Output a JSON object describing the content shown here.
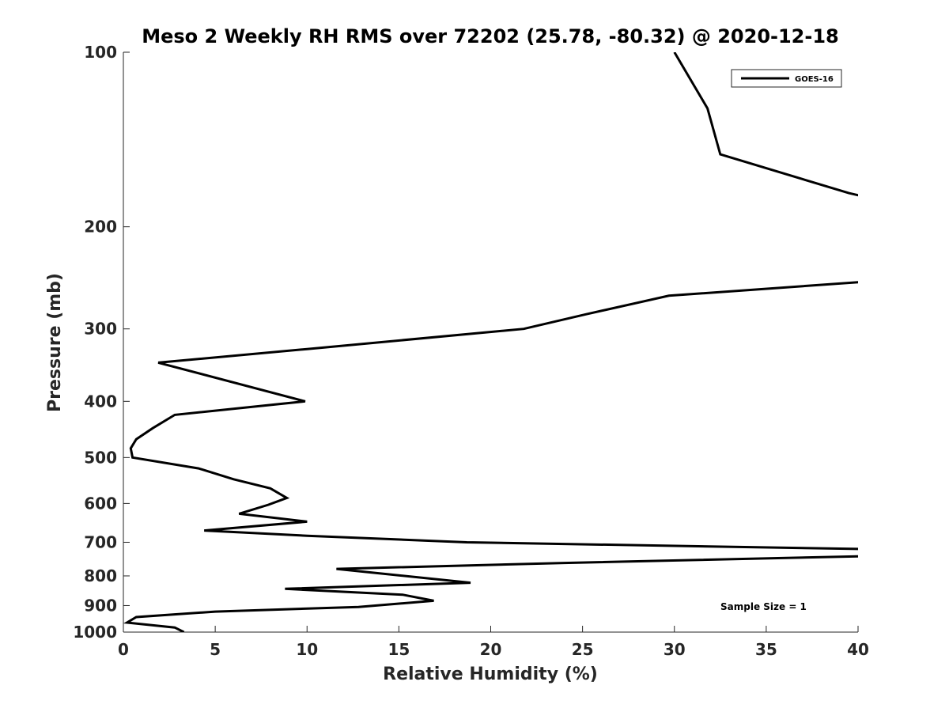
{
  "chart_data": {
    "type": "line",
    "title": "Meso 2 Weekly RH RMS over 72202 (25.78, -80.32) @ 2020-12-18",
    "xlabel": "Relative Humidity (%)",
    "ylabel": "Pressure (mb)",
    "xlim": [
      0,
      40
    ],
    "ylim": [
      100,
      1000
    ],
    "y_scale": "log",
    "y_direction": "reversed",
    "x_ticks": [
      "0",
      "5",
      "10",
      "15",
      "20",
      "25",
      "30",
      "35",
      "40"
    ],
    "y_ticks": [
      "100",
      "200",
      "300",
      "400",
      "500",
      "600",
      "700",
      "800",
      "900",
      "1000"
    ],
    "legend": [
      "GOES-16"
    ],
    "legend_position": "top-right",
    "annotation": "Sample Size = 1",
    "series": [
      {
        "name": "GOES-16",
        "color": "#000000",
        "points": [
          {
            "x": 30.0,
            "p": 100
          },
          {
            "x": 31.8,
            "p": 125
          },
          {
            "x": 32.5,
            "p": 150
          },
          {
            "x": 39.5,
            "p": 175
          },
          {
            "x": 40.2,
            "p": 177
          }
        ]
      },
      {
        "name": "GOES-16",
        "color": "#000000",
        "points": [
          {
            "x": 40.2,
            "p": 249
          },
          {
            "x": 29.7,
            "p": 263
          },
          {
            "x": 25.2,
            "p": 283
          },
          {
            "x": 21.8,
            "p": 300
          },
          {
            "x": 10.0,
            "p": 325
          },
          {
            "x": 1.9,
            "p": 343
          },
          {
            "x": 9.9,
            "p": 400
          },
          {
            "x": 2.8,
            "p": 422
          },
          {
            "x": 1.6,
            "p": 445
          },
          {
            "x": 0.7,
            "p": 465
          },
          {
            "x": 0.4,
            "p": 482
          },
          {
            "x": 0.5,
            "p": 500
          },
          {
            "x": 4.1,
            "p": 522
          },
          {
            "x": 6.0,
            "p": 545
          },
          {
            "x": 8.0,
            "p": 565
          },
          {
            "x": 8.9,
            "p": 587
          },
          {
            "x": 7.9,
            "p": 603
          },
          {
            "x": 6.3,
            "p": 625
          },
          {
            "x": 10.0,
            "p": 645
          },
          {
            "x": 4.4,
            "p": 668
          },
          {
            "x": 10.0,
            "p": 682
          },
          {
            "x": 18.7,
            "p": 700
          },
          {
            "x": 40.2,
            "p": 719
          },
          {
            "x": 40.2,
            "p": 740
          },
          {
            "x": 24.0,
            "p": 760
          },
          {
            "x": 11.6,
            "p": 778
          },
          {
            "x": 18.9,
            "p": 822
          },
          {
            "x": 8.8,
            "p": 842
          },
          {
            "x": 15.2,
            "p": 862
          },
          {
            "x": 16.9,
            "p": 883
          },
          {
            "x": 12.8,
            "p": 905
          },
          {
            "x": 5.0,
            "p": 922
          },
          {
            "x": 0.7,
            "p": 942
          },
          {
            "x": 0.2,
            "p": 963
          },
          {
            "x": 2.8,
            "p": 982
          },
          {
            "x": 3.3,
            "p": 1000
          }
        ]
      }
    ]
  }
}
